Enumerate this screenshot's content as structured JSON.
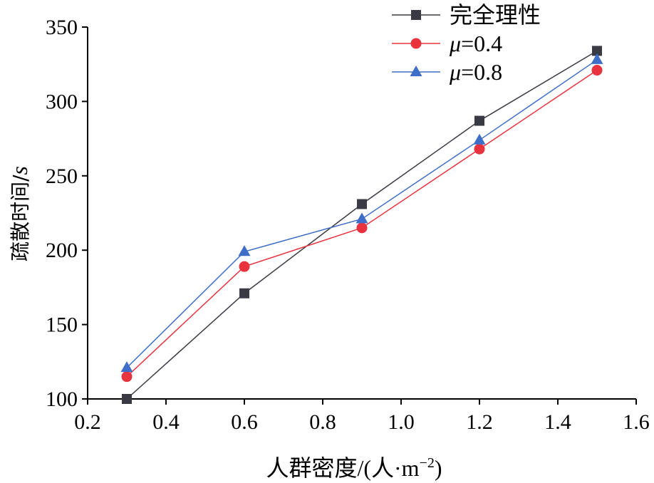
{
  "chart_data": {
    "type": "line",
    "xlabel": "人群密度/(人·m",
    "xlabel_sup": "−2",
    "xlabel_end": ")",
    "ylabel": "疏散时间/",
    "ylabel_unit": "s",
    "xlim": [
      0.2,
      1.6
    ],
    "ylim": [
      100,
      350
    ],
    "x_ticks": [
      0.2,
      0.4,
      0.6,
      0.8,
      1.0,
      1.2,
      1.4,
      1.6
    ],
    "x_tick_labels": [
      "0.2",
      "0.4",
      "0.6",
      "0.8",
      "1.0",
      "1.2",
      "1.4",
      "1.6"
    ],
    "y_ticks": [
      100,
      150,
      200,
      250,
      300,
      350
    ],
    "y_tick_labels": [
      "100",
      "150",
      "200",
      "250",
      "300",
      "350"
    ],
    "x": [
      0.3,
      0.6,
      0.9,
      1.2,
      1.5
    ],
    "legend_position": "top-right",
    "grid": false,
    "series": [
      {
        "name": "完全理性",
        "legend_symbol": "",
        "legend_rest": "完全理性",
        "marker": "square",
        "color": "#3a3a44",
        "values": [
          100,
          171,
          231,
          287,
          334
        ]
      },
      {
        "name": "μ=0.4",
        "legend_symbol": "μ",
        "legend_rest": "=0.4",
        "marker": "circle",
        "color": "#e8333f",
        "values": [
          115,
          189,
          215,
          268,
          321
        ]
      },
      {
        "name": "μ=0.8",
        "legend_symbol": "μ",
        "legend_rest": "=0.8",
        "marker": "triangle",
        "color": "#3f6ec9",
        "values": [
          121,
          199,
          221,
          274,
          328
        ]
      }
    ]
  }
}
